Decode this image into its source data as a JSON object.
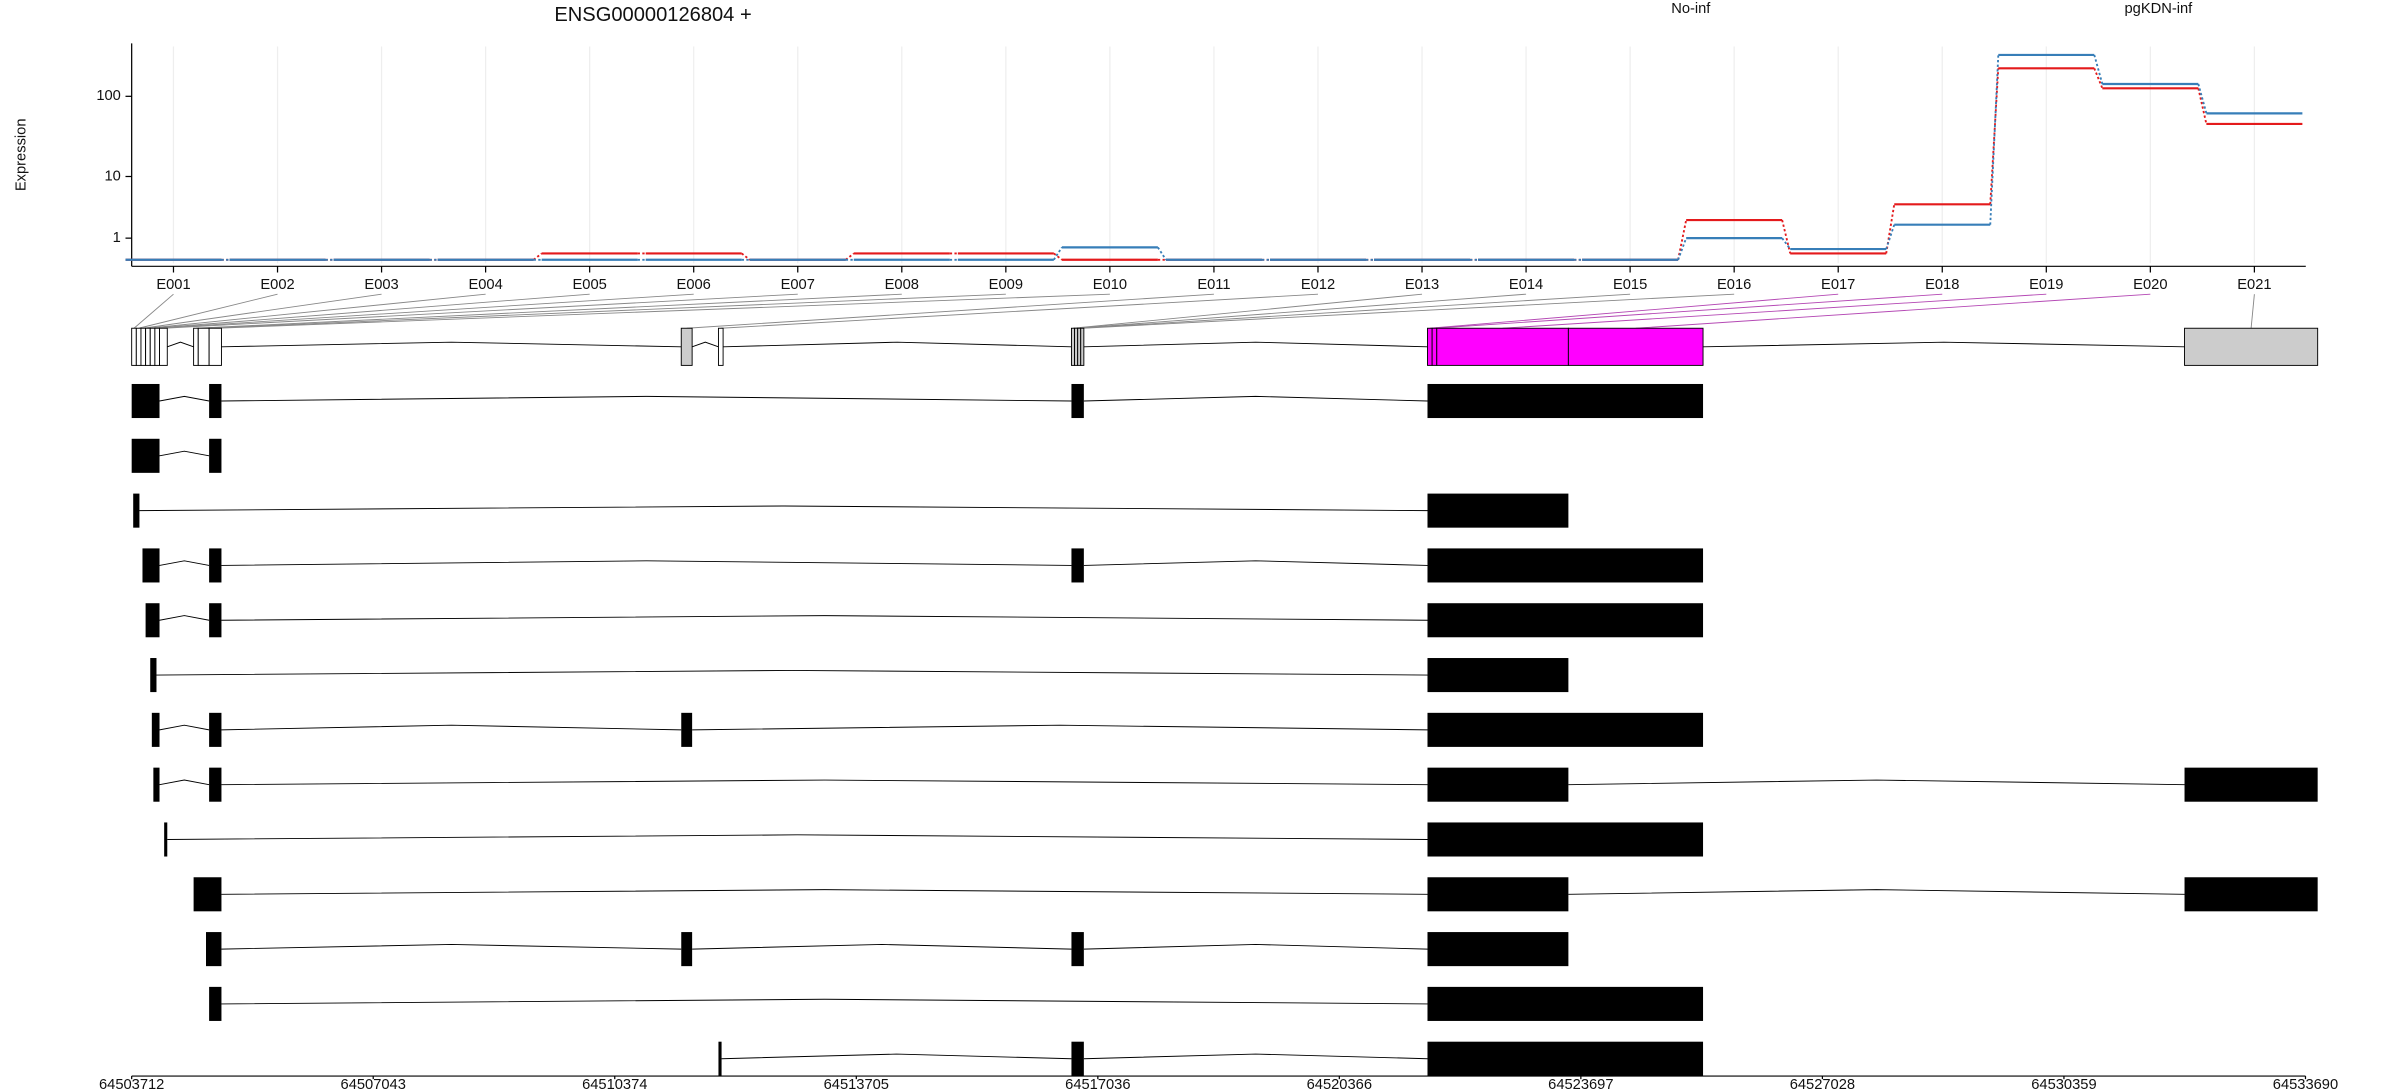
{
  "chart_data": [
    {
      "type": "line",
      "title": "ENSG00000126804 +",
      "y_label": "Expression",
      "yscale": "log1p",
      "categories": [
        "E001",
        "E002",
        "E003",
        "E004",
        "E005",
        "E006",
        "E007",
        "E008",
        "E009",
        "E010",
        "E011",
        "E012",
        "E013",
        "E014",
        "E015",
        "E016",
        "E017",
        "E018",
        "E019",
        "E020",
        "E021"
      ],
      "series": [
        {
          "name": "No-inf",
          "color": "#e41a1c",
          "values": [
            0.1,
            0.1,
            0.1,
            0.1,
            0.31,
            0.31,
            0.1,
            0.31,
            0.31,
            0.1,
            0.1,
            0.1,
            0.1,
            0.1,
            0.1,
            2.3,
            0.31,
            4.1,
            218,
            125,
            46
          ]
        },
        {
          "name": "pgKDN-inf",
          "color": "#377eb8",
          "values": [
            0.1,
            0.1,
            0.1,
            0.1,
            0.1,
            0.1,
            0.1,
            0.1,
            0.1,
            0.55,
            0.1,
            0.1,
            0.1,
            0.1,
            0.1,
            1.0,
            0.48,
            1.9,
            316,
            141,
            62
          ]
        }
      ],
      "ylim": [
        0,
        400
      ],
      "yticks": [
        1,
        10,
        100
      ],
      "grid": true
    },
    {
      "type": "gene-model",
      "xlim": [
        64503712,
        64533690
      ],
      "xticks": [
        64503712,
        64507043,
        64510374,
        64513705,
        64517036,
        64520366,
        64523697,
        64527028,
        64530359,
        64533690
      ],
      "bins": [
        [
          64503712,
          64503776
        ],
        [
          64503776,
          64503840
        ],
        [
          64503840,
          64503904
        ],
        [
          64503904,
          64503968
        ],
        [
          64503968,
          64504032
        ],
        [
          64504032,
          64504096
        ],
        [
          64504096,
          64504203
        ],
        [
          64504566,
          64504630
        ],
        [
          64504630,
          64504780
        ],
        [
          64504780,
          64504950
        ],
        [
          64511291,
          64511441
        ],
        [
          64511804,
          64511868
        ],
        [
          64516672,
          64516715
        ],
        [
          64516715,
          64516758
        ],
        [
          64516758,
          64516800
        ],
        [
          64516800,
          64516843
        ],
        [
          64521582,
          64521646
        ],
        [
          64521646,
          64521710
        ],
        [
          64521710,
          64523525
        ],
        [
          64523525,
          64525382
        ],
        [
          64532022,
          64533858
        ]
      ],
      "bin_colors": [
        "#ffffff",
        "#ffffff",
        "#ffffff",
        "#ffffff",
        "#ffffff",
        "#ffffff",
        "#ffffff",
        "#ffffff",
        "#ffffff",
        "#ffffff",
        "#cccccc",
        "#ffffff",
        "#cccccc",
        "#cccccc",
        "#cccccc",
        "#cccccc",
        "#ff00ff",
        "#ff00ff",
        "#ff00ff",
        "#ff00ff",
        "#cccccc"
      ],
      "transcripts": [
        [
          [
            64503712,
            64504096
          ],
          [
            64504780,
            64504950
          ],
          [
            64516672,
            64516843
          ],
          [
            64521582,
            64525382
          ]
        ],
        [
          [
            64503712,
            64504096
          ],
          [
            64504780,
            64504950
          ]
        ],
        [
          [
            64503733,
            64503819
          ],
          [
            64521582,
            64523525
          ]
        ],
        [
          [
            64503861,
            64504096
          ],
          [
            64504780,
            64504950
          ],
          [
            64516672,
            64516843
          ],
          [
            64521582,
            64525382
          ]
        ],
        [
          [
            64503904,
            64504096
          ],
          [
            64504780,
            64504950
          ],
          [
            64521582,
            64525382
          ]
        ],
        [
          [
            64503968,
            64504054
          ],
          [
            64521582,
            64523525
          ]
        ],
        [
          [
            64503990,
            64504096
          ],
          [
            64504780,
            64504950
          ],
          [
            64511291,
            64511441
          ],
          [
            64521582,
            64525382
          ]
        ],
        [
          [
            64504011,
            64504096
          ],
          [
            64504780,
            64504950
          ],
          [
            64521582,
            64523525
          ],
          [
            64532022,
            64533858
          ]
        ],
        [
          [
            64504160,
            64504203
          ],
          [
            64521582,
            64525382
          ]
        ],
        [
          [
            64504566,
            64504950
          ],
          [
            64521582,
            64523525
          ],
          [
            64532022,
            64533858
          ]
        ],
        [
          [
            64504737,
            64504950
          ],
          [
            64511291,
            64511441
          ],
          [
            64516672,
            64516843
          ],
          [
            64521582,
            64523525
          ]
        ],
        [
          [
            64504780,
            64504950
          ],
          [
            64521582,
            64525382
          ]
        ],
        [
          [
            64511804,
            64511847
          ],
          [
            64516672,
            64516843
          ],
          [
            64521582,
            64525382
          ]
        ]
      ],
      "color": "#000000"
    }
  ]
}
